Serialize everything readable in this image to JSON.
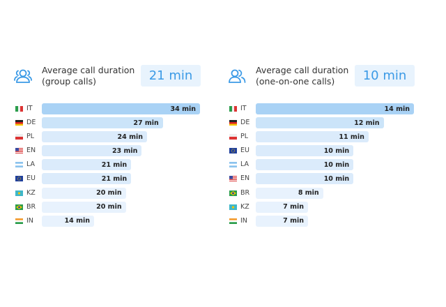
{
  "chart_data": [
    {
      "type": "bar",
      "orientation": "horizontal",
      "title": "Average call duration (group calls)",
      "title_lines": [
        "Average call duration",
        "(group calls)"
      ],
      "summary_value": "21 min",
      "unit": "min",
      "categories": [
        "IT",
        "DE",
        "PL",
        "EN",
        "LA",
        "EU",
        "KZ",
        "BR",
        "IN"
      ],
      "values": [
        34,
        27,
        24,
        23,
        21,
        21,
        20,
        20,
        14
      ],
      "labels": [
        "34 min",
        "27 min",
        "24 min",
        "23 min",
        "21 min",
        "21 min",
        "20 min",
        "20 min",
        "14 min"
      ]
    },
    {
      "type": "bar",
      "orientation": "horizontal",
      "title": "Average call duration (one-on-one calls)",
      "title_lines": [
        "Average call duration",
        "(one-on-one calls)"
      ],
      "summary_value": "10 min",
      "unit": "min",
      "categories": [
        "IT",
        "DE",
        "PL",
        "EU",
        "LA",
        "EN",
        "BR",
        "KZ",
        "IN"
      ],
      "values": [
        14,
        12,
        11,
        10,
        10,
        10,
        8,
        7,
        7
      ],
      "labels": [
        "14 min",
        "12 min",
        "11 min",
        "10 min",
        "10 min",
        "10 min",
        "8 min",
        "7 min",
        "7 min"
      ]
    }
  ],
  "colors": {
    "accent": "#3b9ae6",
    "bar_top": "#a9d2f5",
    "bar_2": "#cbe4f9",
    "bar_3": "#dbebfb",
    "bar_4": "#e8f2fd",
    "summary_bg": "#e8f3fd"
  }
}
